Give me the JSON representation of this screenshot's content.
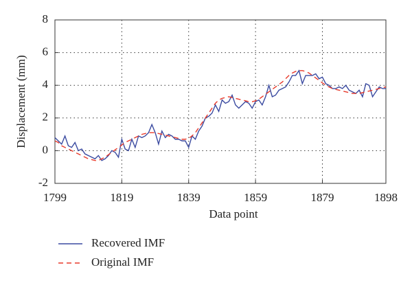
{
  "chart_data": {
    "type": "line",
    "xlabel": "Data point",
    "ylabel": "Displacement (mm)",
    "x": [
      1799,
      1800,
      1801,
      1802,
      1803,
      1804,
      1805,
      1806,
      1807,
      1808,
      1809,
      1810,
      1811,
      1812,
      1813,
      1814,
      1815,
      1816,
      1817,
      1818,
      1819,
      1820,
      1821,
      1822,
      1823,
      1824,
      1825,
      1826,
      1827,
      1828,
      1829,
      1830,
      1831,
      1832,
      1833,
      1834,
      1835,
      1836,
      1837,
      1838,
      1839,
      1840,
      1841,
      1842,
      1843,
      1844,
      1845,
      1846,
      1847,
      1848,
      1849,
      1850,
      1851,
      1852,
      1853,
      1854,
      1855,
      1856,
      1857,
      1858,
      1859,
      1860,
      1861,
      1862,
      1863,
      1864,
      1865,
      1866,
      1867,
      1868,
      1869,
      1870,
      1871,
      1872,
      1873,
      1874,
      1875,
      1876,
      1877,
      1878,
      1879,
      1880,
      1881,
      1882,
      1883,
      1884,
      1885,
      1886,
      1887,
      1888,
      1889,
      1890,
      1891,
      1892,
      1893,
      1894,
      1895,
      1896,
      1897,
      1898
    ],
    "series": [
      {
        "name": "Recovered IMF",
        "color": "#3a4aa0",
        "dash": false,
        "values": [
          0.8,
          0.6,
          0.4,
          0.9,
          0.3,
          0.2,
          0.5,
          0.0,
          0.1,
          -0.2,
          -0.3,
          -0.4,
          -0.5,
          -0.3,
          -0.6,
          -0.5,
          -0.3,
          0.0,
          -0.1,
          -0.4,
          0.7,
          0.1,
          0.0,
          0.7,
          0.2,
          0.9,
          0.8,
          0.9,
          1.1,
          1.6,
          1.1,
          0.4,
          1.2,
          0.8,
          1.0,
          0.9,
          0.7,
          0.7,
          0.6,
          0.6,
          0.2,
          0.9,
          0.7,
          1.2,
          1.5,
          2.0,
          2.1,
          2.3,
          2.8,
          2.4,
          3.1,
          2.9,
          3.0,
          3.4,
          2.8,
          2.6,
          2.8,
          3.0,
          2.9,
          2.6,
          3.0,
          3.1,
          2.8,
          3.3,
          4.0,
          3.3,
          3.4,
          3.7,
          3.8,
          3.9,
          4.2,
          4.6,
          4.6,
          4.9,
          4.1,
          4.6,
          4.6,
          4.6,
          4.7,
          4.4,
          4.5,
          4.1,
          4.0,
          3.8,
          3.8,
          3.9,
          3.8,
          4.0,
          3.7,
          3.6,
          3.5,
          3.7,
          3.3,
          4.1,
          4.0,
          3.3,
          3.6,
          3.9,
          3.8,
          3.8
        ]
      },
      {
        "name": "Original IMF",
        "color": "#e8392a",
        "dash": true,
        "values": [
          0.6,
          0.5,
          0.3,
          0.2,
          0.1,
          0.0,
          -0.1,
          -0.2,
          -0.3,
          -0.4,
          -0.5,
          -0.55,
          -0.6,
          -0.6,
          -0.5,
          -0.4,
          -0.25,
          -0.1,
          0.05,
          0.2,
          0.35,
          0.5,
          0.6,
          0.7,
          0.8,
          0.9,
          1.0,
          1.05,
          1.1,
          1.1,
          1.1,
          1.05,
          1.0,
          0.95,
          0.9,
          0.85,
          0.8,
          0.75,
          0.7,
          0.7,
          0.75,
          0.9,
          1.1,
          1.4,
          1.7,
          2.0,
          2.3,
          2.6,
          2.9,
          3.1,
          3.2,
          3.25,
          3.3,
          3.25,
          3.2,
          3.15,
          3.1,
          3.05,
          3.0,
          3.0,
          3.05,
          3.15,
          3.3,
          3.45,
          3.6,
          3.75,
          3.9,
          4.05,
          4.2,
          4.4,
          4.6,
          4.75,
          4.85,
          4.9,
          4.9,
          4.85,
          4.75,
          4.6,
          4.45,
          4.3,
          4.15,
          4.0,
          3.9,
          3.8,
          3.75,
          3.7,
          3.65,
          3.6,
          3.55,
          3.5,
          3.5,
          3.5,
          3.55,
          3.6,
          3.65,
          3.7,
          3.75,
          3.8,
          3.85,
          3.9
        ]
      }
    ],
    "xlim": [
      1799,
      1898
    ],
    "xticks": [
      1799,
      1819,
      1839,
      1859,
      1879,
      1898
    ],
    "ylim": [
      -2,
      8
    ],
    "yticks": [
      -2,
      0,
      2,
      4,
      6,
      8
    ],
    "grid": true
  }
}
